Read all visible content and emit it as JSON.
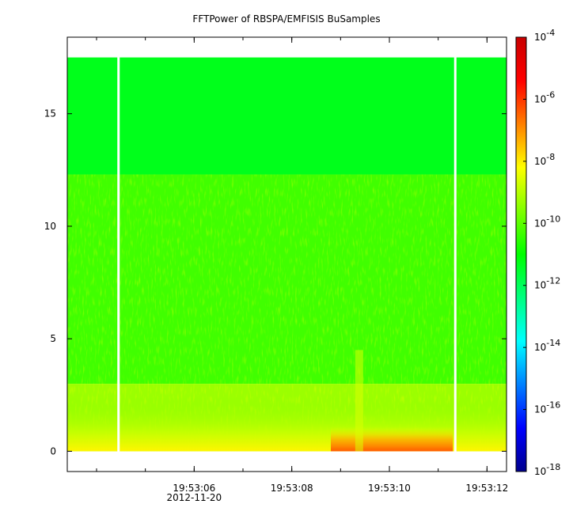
{
  "chart_data": {
    "type": "heatmap",
    "title": "FFTPower of RBSPA/EMFISIS  BuSamples",
    "x": {
      "range_seconds": [
        3.4,
        12.4
      ],
      "ticks": [
        {
          "t": 6,
          "label": "19:53:06"
        },
        {
          "t": 8,
          "label": "19:53:08"
        },
        {
          "t": 10,
          "label": "19:53:10"
        },
        {
          "t": 12,
          "label": "19:53:12"
        }
      ],
      "minor_ticks": [
        4,
        5,
        6,
        7,
        8,
        9,
        10,
        11,
        12
      ],
      "date_label": "2012-11-20"
    },
    "y": {
      "range": [
        -0.9,
        18.4
      ],
      "ticks": [
        0,
        5,
        10,
        15
      ],
      "tick_labels": [
        "0",
        "5",
        "10",
        "15"
      ],
      "data_extent": [
        0,
        17.5
      ]
    },
    "colorbar": {
      "scale": "log",
      "range": [
        1e-18,
        0.0001
      ],
      "colors": [
        "#00008c",
        "#0000ff",
        "#0080ff",
        "#00ffff",
        "#00ff80",
        "#00ff00",
        "#80ff00",
        "#ffff00",
        "#ff8000",
        "#ff0000",
        "#c80000"
      ],
      "ticks": [
        {
          "base": "10",
          "exp": "-4"
        },
        {
          "base": "10",
          "exp": "-6"
        },
        {
          "base": "10",
          "exp": "-8"
        },
        {
          "base": "10",
          "exp": "-10"
        },
        {
          "base": "10",
          "exp": "-12"
        },
        {
          "base": "10",
          "exp": "-14"
        },
        {
          "base": "10",
          "exp": "-16"
        },
        {
          "base": "10",
          "exp": "-18"
        }
      ]
    },
    "data_gaps_seconds": [
      4.45,
      11.35
    ],
    "bands": [
      {
        "y_from": 12.3,
        "y_to": 17.5,
        "log_power": -11.3
      },
      {
        "y_from": 3,
        "y_to": 12.3,
        "log_power": -10.3
      },
      {
        "y_from": 0,
        "y_to": 3,
        "log_power": -9.3
      }
    ],
    "grid": false
  }
}
